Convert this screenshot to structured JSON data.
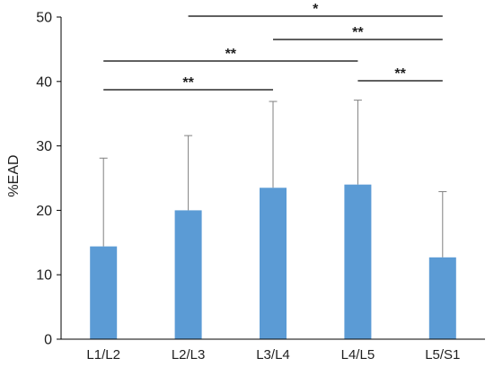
{
  "chart_data": {
    "type": "bar",
    "categories": [
      "L1/L2",
      "L2/L3",
      "L3/L4",
      "L4/L5",
      "L5/S1"
    ],
    "values": [
      14.4,
      20.0,
      23.5,
      24.0,
      12.7
    ],
    "error_upper": [
      13.7,
      11.6,
      13.4,
      13.1,
      10.2
    ],
    "error_bars": "upper only",
    "ylabel": "%EAD",
    "xlabel": "",
    "ylim": [
      0,
      50
    ],
    "yticks": [
      0,
      10,
      20,
      30,
      40,
      50
    ],
    "bar_color": "#5b9bd5",
    "error_color": "#808080",
    "grid": false,
    "significance": [
      {
        "from": "L2/L3",
        "to": "L5/S1",
        "label": "*"
      },
      {
        "from": "L3/L4",
        "to": "L5/S1",
        "label": "**"
      },
      {
        "from": "L1/L2",
        "to": "L4/L5",
        "label": "**"
      },
      {
        "from": "L4/L5",
        "to": "L5/S1",
        "label": "**"
      },
      {
        "from": "L1/L2",
        "to": "L3/L4",
        "label": "**"
      }
    ]
  }
}
